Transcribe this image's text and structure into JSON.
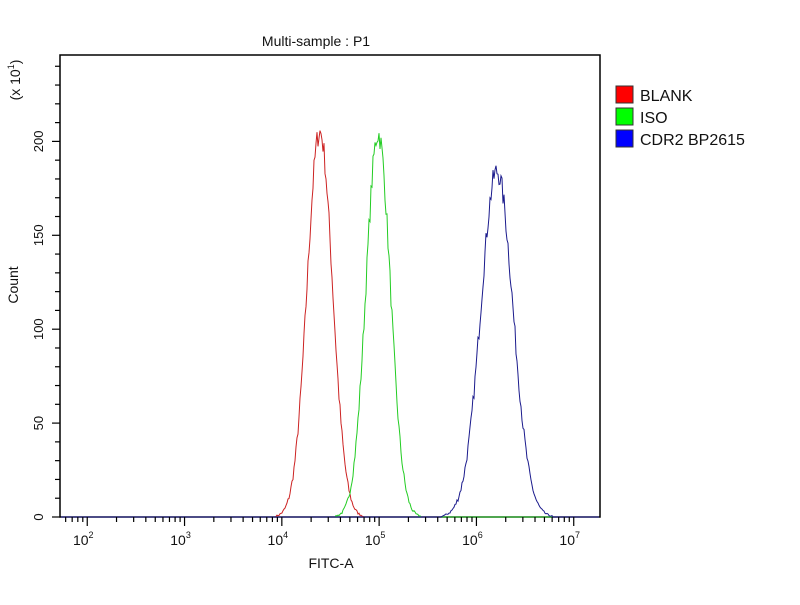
{
  "chart_data": {
    "type": "line",
    "title": "Multi-sample : P1",
    "xlabel": "FITC-A",
    "ylabel": "Count",
    "y_multiplier_label": "(x 10",
    "y_multiplier_exp": "1",
    "x_scale": "log10",
    "xlim_log10": [
      1.72,
      7.27
    ],
    "ylim": [
      0,
      246
    ],
    "x_ticks": [
      {
        "base": "10",
        "exp": "2",
        "value": 2
      },
      {
        "base": "10",
        "exp": "3",
        "value": 3
      },
      {
        "base": "10",
        "exp": "4",
        "value": 4
      },
      {
        "base": "10",
        "exp": "5",
        "value": 5
      },
      {
        "base": "10",
        "exp": "6",
        "value": 6
      },
      {
        "base": "10",
        "exp": "7",
        "value": 7
      }
    ],
    "y_ticks": [
      {
        "label": "0",
        "value": 0
      },
      {
        "label": "50",
        "value": 50
      },
      {
        "label": "100",
        "value": 100
      },
      {
        "label": "150",
        "value": 150
      },
      {
        "label": "200",
        "value": 200
      }
    ],
    "grid": false,
    "legend_position": "right",
    "series": [
      {
        "name": "BLANK",
        "color": "#cc2222",
        "swatch": "#ff0000",
        "peak_log10": 4.39,
        "peak_count": 205,
        "sigma_log10": 0.13
      },
      {
        "name": "ISO",
        "color": "#22cc22",
        "swatch": "#00ff00",
        "peak_log10": 4.99,
        "peak_count": 204,
        "sigma_log10": 0.125
      },
      {
        "name": "CDR2 BP2615",
        "color": "#1a1a8c",
        "swatch": "#0000ff",
        "peak_log10": 6.21,
        "peak_count": 184,
        "sigma_log10": 0.165
      }
    ]
  }
}
